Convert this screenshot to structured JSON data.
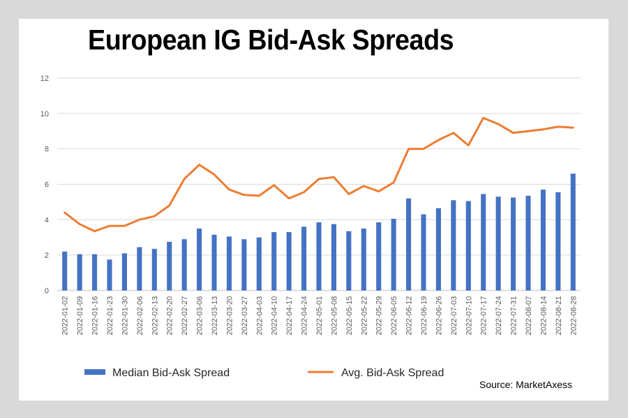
{
  "chart_data": {
    "type": "bar",
    "title": "European IG Bid-Ask Spreads",
    "xlabel": "",
    "ylabel": "",
    "ylim": [
      0,
      12
    ],
    "yticks": [
      "0",
      "2",
      "4",
      "6",
      "8",
      "10",
      "12"
    ],
    "grid": "horizontal",
    "legend_position": "bottom",
    "categories": [
      "2022-01-02",
      "2022-01-09",
      "2022-01-16",
      "2022-01-23",
      "2022-01-30",
      "2022-02-06",
      "2022-02-13",
      "2022-02-20",
      "2022-02-27",
      "2022-03-06",
      "2022-03-13",
      "2022-03-20",
      "2022-03-27",
      "2022-04-03",
      "2022-04-10",
      "2022-04-17",
      "2022-04-24",
      "2022-05-01",
      "2022-05-08",
      "2022-05-15",
      "2022-05-22",
      "2022-05-29",
      "2022-06-05",
      "2022-06-12",
      "2022-06-19",
      "2022-06-26",
      "2022-07-03",
      "2022-07-10",
      "2022-07-17",
      "2022-07-24",
      "2022-07-31",
      "2022-08-07",
      "2022-08-14",
      "2022-08-21",
      "2022-08-28"
    ],
    "series": [
      {
        "name": "Median Bid-Ask Spread",
        "kind": "bar",
        "color": "#4472c4",
        "values": [
          2.2,
          2.05,
          2.05,
          1.75,
          2.1,
          2.45,
          2.35,
          2.75,
          2.9,
          3.5,
          3.15,
          3.05,
          2.9,
          3.0,
          3.3,
          3.3,
          3.6,
          3.85,
          3.75,
          3.35,
          3.5,
          3.85,
          4.05,
          5.2,
          4.3,
          4.65,
          5.1,
          5.05,
          5.45,
          5.3,
          5.25,
          5.35,
          5.7,
          5.55,
          6.6
        ]
      },
      {
        "name": "Avg. Bid-Ask Spread",
        "kind": "line",
        "color": "#ed7d31",
        "values": [
          4.4,
          3.75,
          3.35,
          3.65,
          3.65,
          4.0,
          4.2,
          4.8,
          6.3,
          7.1,
          6.55,
          5.7,
          5.4,
          5.35,
          5.95,
          5.2,
          5.55,
          6.3,
          6.4,
          5.45,
          5.9,
          5.6,
          6.1,
          8.0,
          8.0,
          8.5,
          8.9,
          8.2,
          9.75,
          9.4,
          8.9,
          9.0,
          9.1,
          9.25,
          9.2
        ]
      }
    ],
    "source": "Source: MarketAxess"
  }
}
